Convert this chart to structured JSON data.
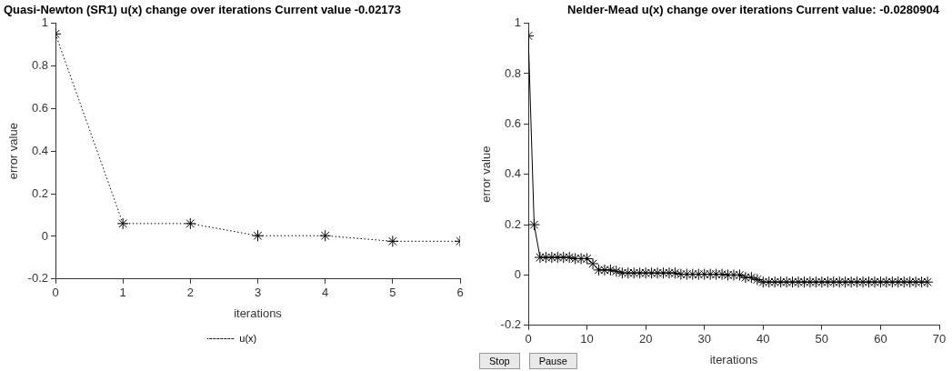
{
  "chart_data": [
    {
      "type": "line",
      "title": "Quasi-Newton (SR1) u(x) change over iterations Current value -0.02173",
      "xlabel": "iterations",
      "ylabel": "error value",
      "x": [
        0,
        1,
        2,
        3,
        4,
        5,
        6
      ],
      "series": [
        {
          "name": "u(x)",
          "color": "#000000",
          "values": [
            0.95,
            0.06,
            0.06,
            0.003,
            0.003,
            -0.023,
            -0.023
          ]
        }
      ],
      "xlim": [
        0,
        6
      ],
      "xticks": [
        0,
        1,
        2,
        3,
        4,
        5,
        6
      ],
      "ylim": [
        -0.2,
        1
      ],
      "yticks": [
        -0.2,
        0,
        0.2,
        0.4,
        0.6,
        0.8,
        1
      ],
      "grid": false,
      "legend": "bottom",
      "marker": "cross",
      "line_style": "dotted"
    },
    {
      "type": "line",
      "title": "Nelder-Mead u(x) change over iterations Current value: -0.0280904",
      "xlabel": "iterations",
      "ylabel": "error value",
      "x": [
        0,
        1,
        2,
        3,
        4,
        5,
        6,
        7,
        8,
        9,
        10,
        11,
        12,
        13,
        14,
        15,
        16,
        17,
        18,
        19,
        20,
        21,
        22,
        23,
        24,
        25,
        26,
        27,
        28,
        29,
        30,
        31,
        32,
        33,
        34,
        35,
        36,
        37,
        38,
        39,
        40,
        41,
        42,
        43,
        44,
        45,
        46,
        47,
        48,
        49,
        50,
        51,
        52,
        53,
        54,
        55,
        56,
        57,
        58,
        59,
        60,
        61,
        62,
        63,
        64,
        65,
        66,
        67,
        68
      ],
      "series": [
        {
          "color": "#000000",
          "values": [
            0.95,
            0.2,
            0.07,
            0.07,
            0.07,
            0.07,
            0.07,
            0.07,
            0.065,
            0.065,
            0.065,
            0.045,
            0.02,
            0.02,
            0.02,
            0.015,
            0.008,
            0.008,
            0.008,
            0.008,
            0.008,
            0.008,
            0.008,
            0.008,
            0.008,
            0.008,
            0.003,
            0.003,
            0.003,
            0.003,
            0.003,
            0.003,
            0.003,
            0.003,
            0,
            0,
            0,
            -0.01,
            -0.01,
            -0.018,
            -0.028,
            -0.028,
            -0.028,
            -0.028,
            -0.028,
            -0.028,
            -0.028,
            -0.028,
            -0.028,
            -0.028,
            -0.028,
            -0.028,
            -0.028,
            -0.028,
            -0.028,
            -0.028,
            -0.028,
            -0.028,
            -0.028,
            -0.028,
            -0.028,
            -0.028,
            -0.028,
            -0.028,
            -0.028,
            -0.028,
            -0.028,
            -0.028,
            -0.028
          ]
        }
      ],
      "xlim": [
        0,
        70
      ],
      "xticks": [
        0,
        10,
        20,
        30,
        40,
        50,
        60,
        70
      ],
      "ylim": [
        -0.2,
        1
      ],
      "yticks": [
        -0.2,
        0,
        0.2,
        0.4,
        0.6,
        0.8,
        1
      ],
      "grid": false,
      "marker": "cross",
      "line_style": "solid",
      "annotations": [
        "Stop",
        "Pause"
      ]
    }
  ]
}
